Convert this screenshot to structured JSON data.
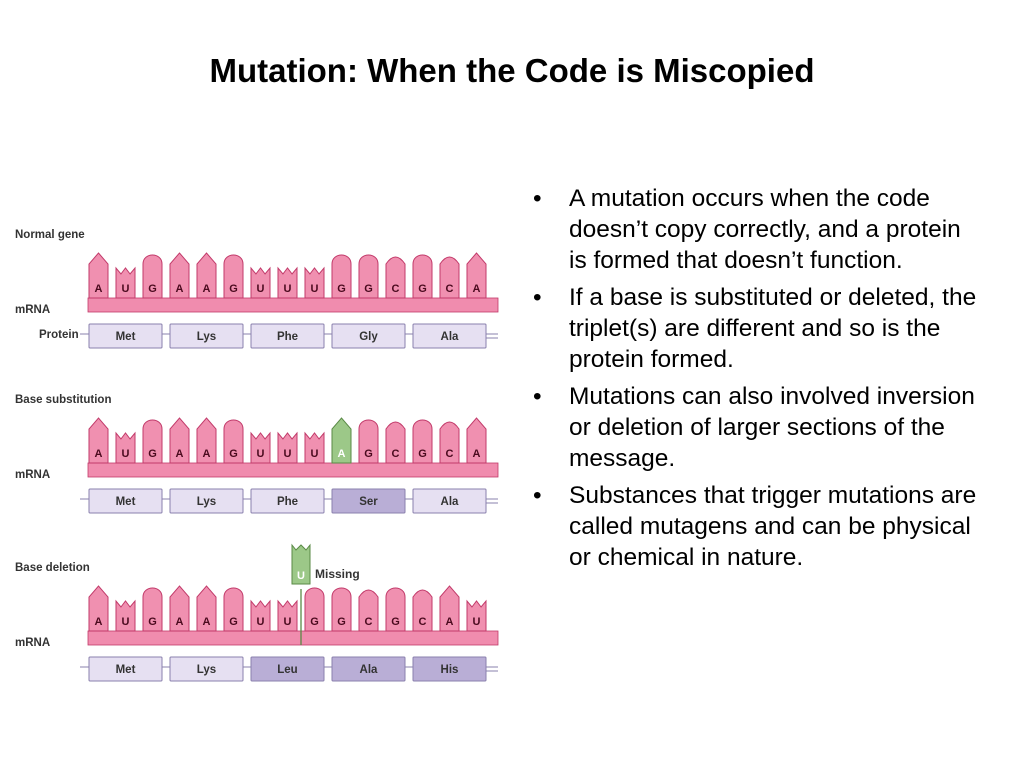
{
  "title": "Mutation: When the Code is Miscopied",
  "colors": {
    "base_fill": "#f090b0",
    "base_stroke": "#c23a6a",
    "base_text": "#4a0a1e",
    "band_fill": "#f08cae",
    "substituted_fill": "#9cc888",
    "substituted_stroke": "#5a8a46",
    "protein_fill": "#e6e0f2",
    "protein_changed_fill": "#b9aed6",
    "protein_stroke": "#8a80ad"
  },
  "labels": {
    "mrna": "mRNA",
    "protein": "Protein"
  },
  "panels": [
    {
      "label": "Normal gene",
      "bases": [
        "A",
        "U",
        "G",
        "A",
        "A",
        "G",
        "U",
        "U",
        "U",
        "G",
        "G",
        "C",
        "G",
        "C",
        "A"
      ],
      "proteins": [
        {
          "name": "Met",
          "changed": false
        },
        {
          "name": "Lys",
          "changed": false
        },
        {
          "name": "Phe",
          "changed": false
        },
        {
          "name": "Gly",
          "changed": false
        },
        {
          "name": "Ala",
          "changed": false
        }
      ]
    },
    {
      "label": "Base substitution",
      "bases": [
        "A",
        "U",
        "G",
        "A",
        "A",
        "G",
        "U",
        "U",
        "U",
        "A",
        "G",
        "C",
        "G",
        "C",
        "A"
      ],
      "substituted_index": 9,
      "proteins": [
        {
          "name": "Met",
          "changed": false
        },
        {
          "name": "Lys",
          "changed": false
        },
        {
          "name": "Phe",
          "changed": false
        },
        {
          "name": "Ser",
          "changed": true
        },
        {
          "name": "Ala",
          "changed": false
        }
      ]
    },
    {
      "label": "Base deletion",
      "bases": [
        "A",
        "U",
        "G",
        "A",
        "A",
        "G",
        "U",
        "U",
        "G",
        "G",
        "C",
        "G",
        "C",
        "A",
        "U"
      ],
      "missing": {
        "base": "U",
        "label": "Missing"
      },
      "proteins": [
        {
          "name": "Met",
          "changed": false
        },
        {
          "name": "Lys",
          "changed": false
        },
        {
          "name": "Leu",
          "changed": true
        },
        {
          "name": "Ala",
          "changed": true
        },
        {
          "name": "His",
          "changed": true
        }
      ]
    }
  ],
  "bullets": [
    "A mutation occurs when the code doesn’t copy correctly, and a  protein is formed that doesn’t function.",
    "If a base is substituted or deleted, the triplet(s) are different and so is the protein formed.",
    "Mutations can also involved inversion or deletion of larger sections of the message.",
    "Substances that trigger mutations are called mutagens and can be physical or chemical in nature."
  ],
  "bullet_char": "•"
}
